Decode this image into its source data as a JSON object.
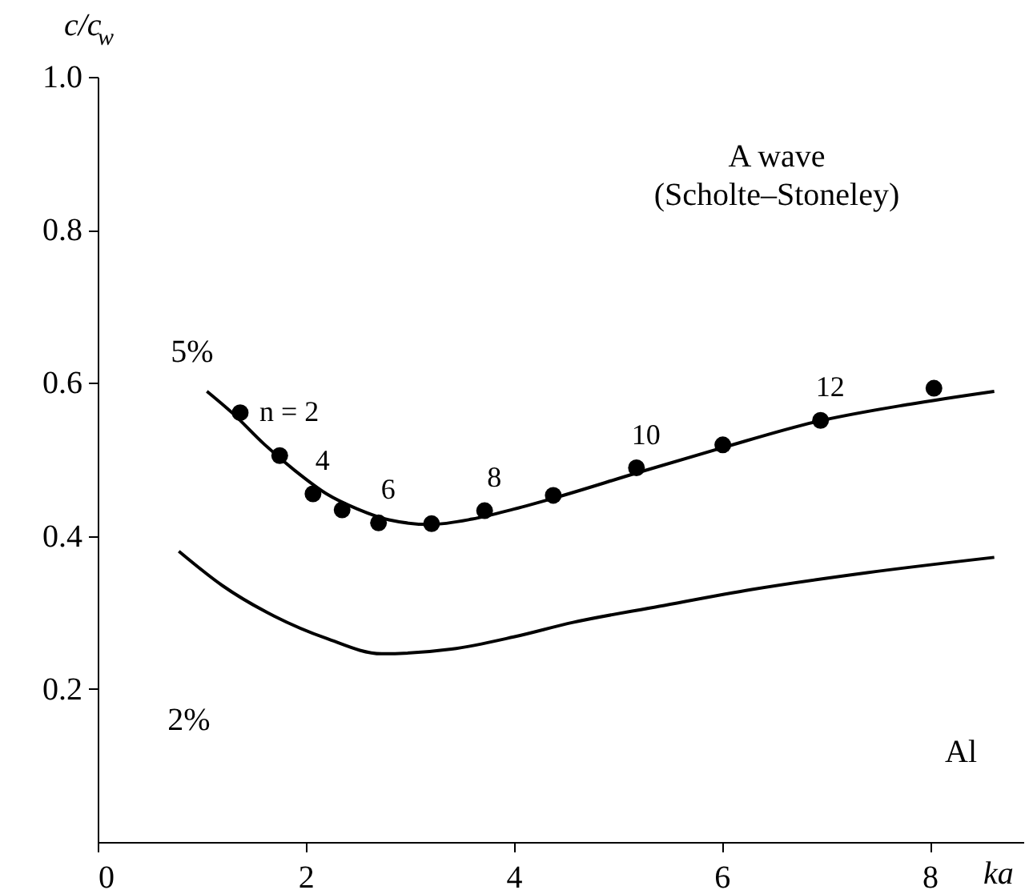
{
  "chart_data": {
    "type": "line",
    "xlabel": "ka",
    "ylabel": "c/c$_{w}$",
    "xlim": [
      0,
      8.9
    ],
    "ylim": [
      0,
      1.0
    ],
    "xticks": [
      0,
      2,
      4,
      6,
      8
    ],
    "yticks": [
      0.2,
      0.4,
      0.6,
      0.8,
      {
        "value": 1,
        "label": "1.0"
      }
    ],
    "grid": false,
    "line_style": "solid",
    "series": [
      {
        "color": "#000000",
        "x": [
          1.05,
          1.3,
          1.6,
          1.9,
          2.2,
          2.5,
          2.8,
          3.2,
          3.6,
          4.0,
          4.4,
          5.2,
          6.0,
          6.9,
          7.8,
          8.62
        ],
        "values": [
          0.589,
          0.56,
          0.52,
          0.485,
          0.455,
          0.435,
          0.421,
          0.415,
          0.422,
          0.435,
          0.45,
          0.483,
          0.515,
          0.549,
          0.572,
          0.589
        ]
      },
      {
        "color": "#000000",
        "x": [
          0.78,
          1.2,
          1.7,
          2.2,
          2.73,
          3.4,
          4.0,
          4.57,
          5.4,
          6.29,
          7.4,
          8.62
        ],
        "values": [
          0.38,
          0.335,
          0.295,
          0.266,
          0.246,
          0.252,
          0.268,
          0.287,
          0.308,
          0.33,
          0.352,
          0.372
        ]
      },
      {
        "type": "scatter",
        "marker": "circle",
        "color": "#000000",
        "x": [
          1.37,
          1.75,
          2.07,
          2.35,
          2.7,
          3.21,
          3.72,
          4.38,
          5.18,
          6.01,
          6.95,
          8.04
        ],
        "values": [
          0.561,
          0.505,
          0.455,
          0.434,
          0.417,
          0.416,
          0.433,
          0.453,
          0.489,
          0.519,
          0.551,
          0.593
        ]
      }
    ],
    "annotations": [
      "A wave\n(Scholte–Stoneley)",
      "Al",
      "5%",
      "2%",
      {
        "text": "n = 2",
        "x": 1.37,
        "y": 0.561
      },
      {
        "text": "4",
        "x": 2.07,
        "y": 0.455
      },
      {
        "text": "6",
        "x": 2.7,
        "y": 0.417
      },
      {
        "text": "8",
        "x": 3.72,
        "y": 0.433
      },
      {
        "text": "10",
        "x": 5.18,
        "y": 0.489
      },
      {
        "text": "12",
        "x": 6.95,
        "y": 0.551
      }
    ]
  }
}
